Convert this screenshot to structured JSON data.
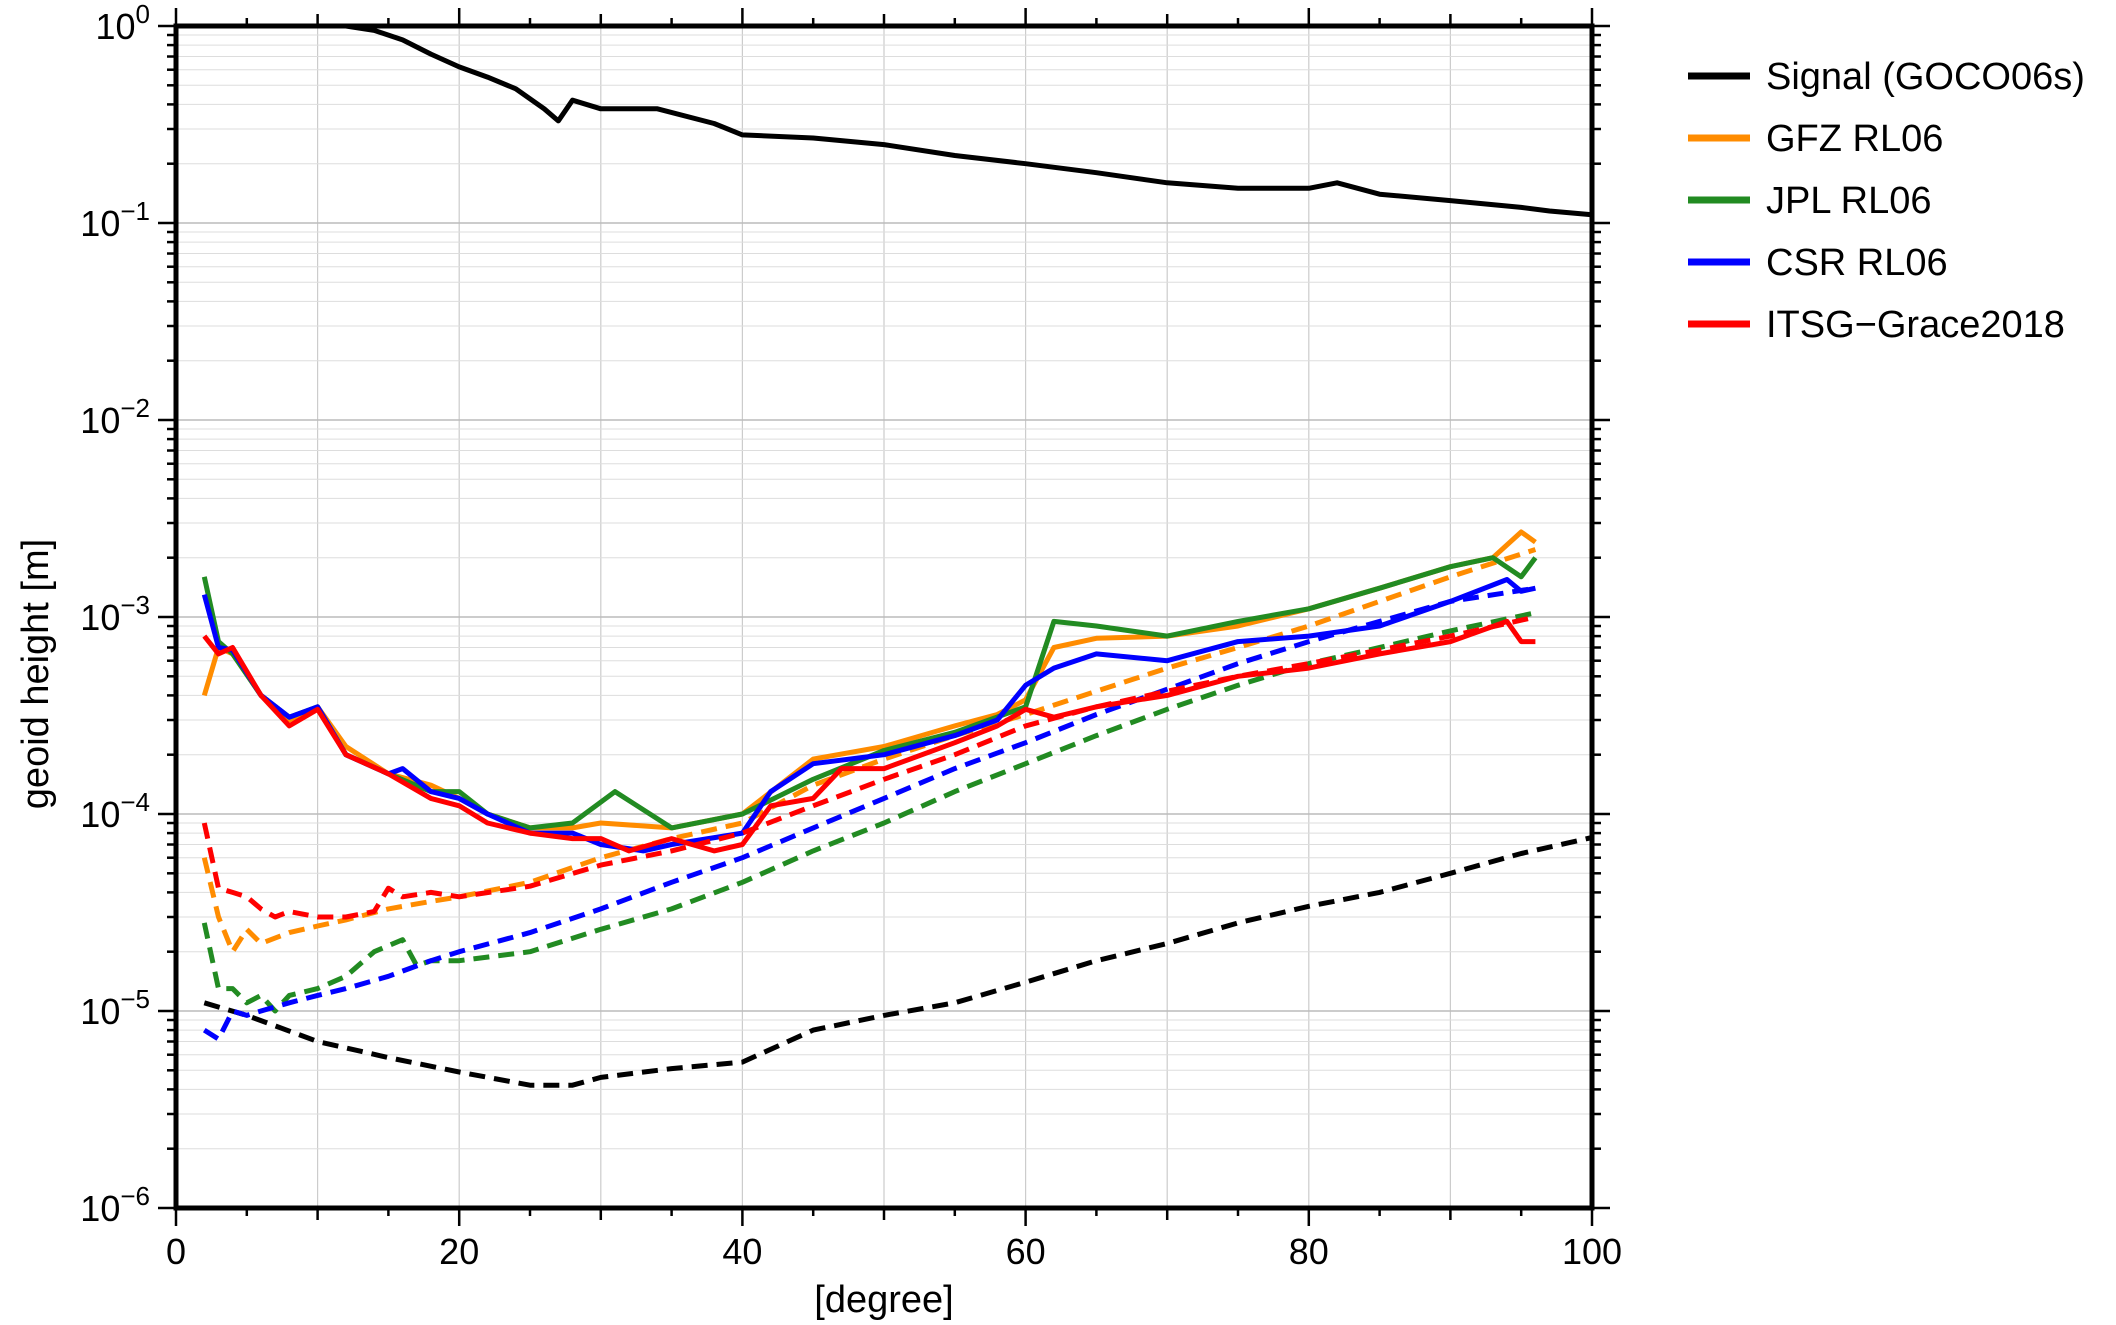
{
  "chart_data": {
    "type": "line",
    "xlabel": "[degree]",
    "ylabel": "geoid height [m]",
    "xlim": [
      0,
      100
    ],
    "ylim": [
      1e-06,
      1
    ],
    "yscale": "log",
    "grid": true,
    "legend_position": "right",
    "x_ticks": [
      {
        "value": 0,
        "label": "0"
      },
      {
        "value": 20,
        "label": "20"
      },
      {
        "value": 40,
        "label": "40"
      },
      {
        "value": 60,
        "label": "60"
      },
      {
        "value": 80,
        "label": "80"
      },
      {
        "value": 100,
        "label": "100"
      }
    ],
    "y_ticks": [
      {
        "value": 1,
        "base": "10",
        "exp": "0"
      },
      {
        "value": 0.1,
        "base": "10",
        "exp": "−1"
      },
      {
        "value": 0.01,
        "base": "10",
        "exp": "−2"
      },
      {
        "value": 0.001,
        "base": "10",
        "exp": "−3"
      },
      {
        "value": 0.0001,
        "base": "10",
        "exp": "−4"
      },
      {
        "value": 1e-05,
        "base": "10",
        "exp": "−5"
      },
      {
        "value": 1e-06,
        "base": "10",
        "exp": "−6"
      }
    ],
    "legend": [
      {
        "name": "Signal (GOCO06s)",
        "color": "#000000"
      },
      {
        "name": "GFZ RL06",
        "color": "#ff8c00"
      },
      {
        "name": "JPL RL06",
        "color": "#228b22"
      },
      {
        "name": "CSR RL06",
        "color": "#0000ff"
      },
      {
        "name": "ITSG−Grace2018",
        "color": "#ff0000"
      }
    ],
    "series": [
      {
        "label_ref": "Signal (GOCO06s)",
        "color": "#000000",
        "dash": "solid",
        "x": [
          12,
          14,
          16,
          18,
          20,
          22,
          24,
          26,
          27,
          28,
          30,
          34,
          38,
          40,
          45,
          50,
          55,
          60,
          65,
          70,
          75,
          80,
          82,
          85,
          90,
          95,
          97,
          100
        ],
        "y": [
          1.0,
          0.95,
          0.85,
          0.72,
          0.62,
          0.55,
          0.48,
          0.38,
          0.33,
          0.42,
          0.38,
          0.38,
          0.32,
          0.28,
          0.27,
          0.25,
          0.22,
          0.2,
          0.18,
          0.16,
          0.15,
          0.15,
          0.16,
          0.14,
          0.13,
          0.12,
          0.115,
          0.11
        ]
      },
      {
        "label_ref": "Signal (GOCO06s)",
        "color": "#000000",
        "dash": "dashed",
        "x": [
          2,
          5,
          10,
          15,
          20,
          25,
          28,
          30,
          35,
          40,
          45,
          50,
          55,
          60,
          65,
          70,
          75,
          80,
          85,
          90,
          95,
          100
        ],
        "y": [
          1.1e-05,
          9.5e-06,
          7e-06,
          5.8e-06,
          4.9e-06,
          4.2e-06,
          4.2e-06,
          4.6e-06,
          5.1e-06,
          5.5e-06,
          8e-06,
          9.5e-06,
          1.1e-05,
          1.4e-05,
          1.8e-05,
          2.2e-05,
          2.8e-05,
          3.4e-05,
          4e-05,
          5e-05,
          6.3e-05,
          7.6e-05
        ]
      },
      {
        "label_ref": "GFZ RL06",
        "color": "#ff8c00",
        "dash": "solid",
        "x": [
          2,
          3,
          4,
          6,
          8,
          10,
          12,
          15,
          18,
          20,
          22,
          25,
          28,
          30,
          35,
          40,
          45,
          50,
          55,
          58,
          60,
          62,
          65,
          70,
          75,
          80,
          85,
          90,
          93,
          95,
          96
        ],
        "y": [
          0.0004,
          0.0007,
          0.00065,
          0.0004,
          0.0003,
          0.00035,
          0.00022,
          0.00016,
          0.00014,
          0.00012,
          0.0001,
          8.5e-05,
          8.5e-05,
          9e-05,
          8.5e-05,
          0.0001,
          0.00019,
          0.00022,
          0.00028,
          0.00032,
          0.00038,
          0.0007,
          0.00078,
          0.0008,
          0.0009,
          0.0011,
          0.0014,
          0.0018,
          0.002,
          0.0027,
          0.0024
        ]
      },
      {
        "label_ref": "GFZ RL06",
        "color": "#ff8c00",
        "dash": "dashed",
        "x": [
          2,
          3,
          4,
          5,
          6,
          8,
          10,
          12,
          15,
          18,
          20,
          25,
          30,
          35,
          40,
          45,
          50,
          55,
          60,
          65,
          70,
          75,
          80,
          85,
          90,
          96
        ],
        "y": [
          6e-05,
          3e-05,
          2e-05,
          2.6e-05,
          2.2e-05,
          2.5e-05,
          2.7e-05,
          2.9e-05,
          3.3e-05,
          3.6e-05,
          3.8e-05,
          4.5e-05,
          6e-05,
          7.5e-05,
          9e-05,
          0.00014,
          0.00019,
          0.00025,
          0.00032,
          0.00042,
          0.00055,
          0.0007,
          0.0009,
          0.0012,
          0.0016,
          0.0022
        ]
      },
      {
        "label_ref": "JPL RL06",
        "color": "#228b22",
        "dash": "solid",
        "x": [
          2,
          3,
          4,
          6,
          8,
          10,
          12,
          15,
          18,
          20,
          22,
          25,
          28,
          31,
          35,
          40,
          45,
          50,
          55,
          60,
          62,
          65,
          70,
          75,
          80,
          85,
          90,
          93,
          95,
          96
        ],
        "y": [
          0.0016,
          0.00075,
          0.00065,
          0.0004,
          0.00031,
          0.00035,
          0.0002,
          0.00016,
          0.00013,
          0.00013,
          0.0001,
          8.5e-05,
          9e-05,
          0.00013,
          8.5e-05,
          0.0001,
          0.00015,
          0.00021,
          0.00026,
          0.00035,
          0.00095,
          0.0009,
          0.0008,
          0.00095,
          0.0011,
          0.0014,
          0.0018,
          0.002,
          0.0016,
          0.002
        ]
      },
      {
        "label_ref": "JPL RL06",
        "color": "#228b22",
        "dash": "dashed",
        "x": [
          2,
          3,
          4,
          5,
          6,
          7,
          8,
          10,
          12,
          14,
          16,
          17,
          18,
          20,
          25,
          30,
          35,
          40,
          45,
          50,
          55,
          60,
          65,
          70,
          75,
          80,
          85,
          90,
          96
        ],
        "y": [
          2.8e-05,
          1.3e-05,
          1.3e-05,
          1.1e-05,
          1.2e-05,
          1e-05,
          1.2e-05,
          1.3e-05,
          1.5e-05,
          2e-05,
          2.3e-05,
          1.7e-05,
          1.8e-05,
          1.8e-05,
          2e-05,
          2.6e-05,
          3.3e-05,
          4.5e-05,
          6.5e-05,
          9e-05,
          0.00013,
          0.00018,
          0.00025,
          0.00034,
          0.00045,
          0.00058,
          0.0007,
          0.00085,
          0.00105
        ]
      },
      {
        "label_ref": "CSR RL06",
        "color": "#0000ff",
        "dash": "solid",
        "x": [
          2,
          3,
          4,
          6,
          8,
          10,
          12,
          15,
          16,
          18,
          20,
          22,
          25,
          28,
          30,
          33,
          35,
          40,
          42,
          45,
          50,
          55,
          58,
          60,
          62,
          65,
          70,
          75,
          80,
          85,
          90,
          94,
          95,
          96
        ],
        "y": [
          0.0013,
          0.0007,
          0.00068,
          0.0004,
          0.00031,
          0.00035,
          0.0002,
          0.00016,
          0.00017,
          0.00013,
          0.00012,
          0.0001,
          8e-05,
          8e-05,
          7e-05,
          6.5e-05,
          7e-05,
          8e-05,
          0.00013,
          0.00018,
          0.0002,
          0.00025,
          0.0003,
          0.00045,
          0.00055,
          0.00065,
          0.0006,
          0.00075,
          0.0008,
          0.0009,
          0.0012,
          0.00155,
          0.00135,
          0.0014
        ]
      },
      {
        "label_ref": "CSR RL06",
        "color": "#0000ff",
        "dash": "dashed",
        "x": [
          2,
          3,
          4,
          5,
          6,
          8,
          10,
          12,
          15,
          18,
          20,
          25,
          30,
          35,
          40,
          45,
          50,
          55,
          60,
          65,
          70,
          75,
          80,
          85,
          90,
          96
        ],
        "y": [
          8e-06,
          7.2e-06,
          1e-05,
          9.5e-06,
          1e-05,
          1.1e-05,
          1.2e-05,
          1.3e-05,
          1.5e-05,
          1.8e-05,
          2e-05,
          2.5e-05,
          3.3e-05,
          4.5e-05,
          6e-05,
          8.5e-05,
          0.00012,
          0.00017,
          0.00023,
          0.00032,
          0.00043,
          0.00058,
          0.00075,
          0.00095,
          0.0012,
          0.0014
        ]
      },
      {
        "label_ref": "ITSG−Grace2018",
        "color": "#ff0000",
        "dash": "solid",
        "x": [
          2,
          3,
          4,
          6,
          8,
          10,
          12,
          15,
          18,
          20,
          22,
          25,
          28,
          30,
          32,
          35,
          38,
          40,
          42,
          45,
          47,
          50,
          55,
          58,
          60,
          62,
          65,
          68,
          70,
          75,
          80,
          85,
          90,
          94,
          95,
          96
        ],
        "y": [
          0.0008,
          0.00065,
          0.0007,
          0.0004,
          0.00028,
          0.00034,
          0.0002,
          0.00016,
          0.00012,
          0.00011,
          9e-05,
          8e-05,
          7.5e-05,
          7.5e-05,
          6.5e-05,
          7.5e-05,
          6.5e-05,
          7e-05,
          0.00011,
          0.00012,
          0.00017,
          0.00017,
          0.00023,
          0.00028,
          0.00034,
          0.00031,
          0.00035,
          0.00038,
          0.0004,
          0.0005,
          0.00055,
          0.00065,
          0.00075,
          0.00095,
          0.00075,
          0.00075
        ]
      },
      {
        "label_ref": "ITSG−Grace2018",
        "color": "#ff0000",
        "dash": "dashed",
        "x": [
          2,
          3,
          4,
          5,
          6,
          7,
          8,
          10,
          12,
          14,
          15,
          16,
          18,
          20,
          25,
          30,
          35,
          40,
          45,
          50,
          55,
          60,
          65,
          70,
          75,
          80,
          85,
          90,
          96
        ],
        "y": [
          9e-05,
          4.2e-05,
          4e-05,
          3.8e-05,
          3.3e-05,
          3e-05,
          3.2e-05,
          3e-05,
          3e-05,
          3.2e-05,
          4.2e-05,
          3.8e-05,
          4e-05,
          3.8e-05,
          4.3e-05,
          5.5e-05,
          6.5e-05,
          8e-05,
          0.00011,
          0.00015,
          0.0002,
          0.00028,
          0.00035,
          0.00042,
          0.0005,
          0.00058,
          0.00068,
          0.0008,
          0.001
        ]
      }
    ]
  }
}
